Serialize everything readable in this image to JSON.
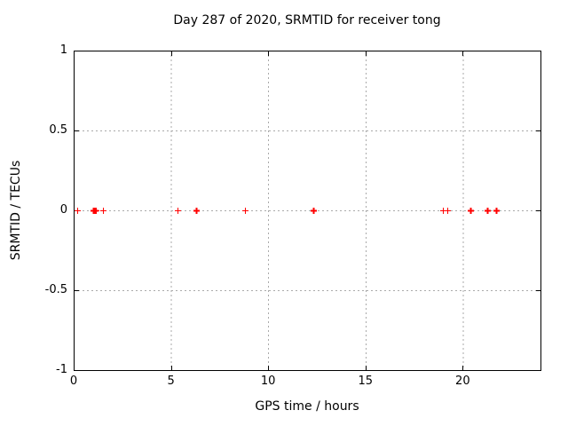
{
  "title": "Day 287 of 2020, SRMTID for receiver tong",
  "chart_data": {
    "type": "scatter",
    "title": "Day 287 of 2020, SRMTID for receiver tong",
    "xlabel": "GPS time / hours",
    "ylabel": "SRMTID / TECUs",
    "xlim": [
      0,
      24
    ],
    "ylim": [
      -1,
      1
    ],
    "xticks": [
      0,
      5,
      10,
      15,
      20
    ],
    "yticks": [
      1,
      0.5,
      0,
      -0.5,
      -1
    ],
    "grid": true,
    "grid_xticks": [
      5,
      10,
      15,
      20
    ],
    "grid_yticks": [
      0.5,
      0,
      -0.5
    ],
    "legend_position": "none",
    "marker": "plus",
    "marker_color": "#ff0000",
    "border_color": "#000000",
    "grid_color": "#aaaaaa",
    "background_color": "#ffffff",
    "series": [
      {
        "name": "SRMTID",
        "points": [
          {
            "x": 0.2,
            "y": 0,
            "bold": false
          },
          {
            "x": 1.0,
            "y": 0,
            "bold": true
          },
          {
            "x": 1.05,
            "y": 0,
            "bold": true
          },
          {
            "x": 1.1,
            "y": 0,
            "bold": true
          },
          {
            "x": 1.15,
            "y": 0,
            "bold": false
          },
          {
            "x": 1.5,
            "y": 0,
            "bold": false
          },
          {
            "x": 5.35,
            "y": 0,
            "bold": false
          },
          {
            "x": 6.3,
            "y": 0,
            "bold": true
          },
          {
            "x": 8.8,
            "y": 0,
            "bold": false
          },
          {
            "x": 12.3,
            "y": 0,
            "bold": true
          },
          {
            "x": 19.0,
            "y": 0,
            "bold": false
          },
          {
            "x": 19.2,
            "y": 0,
            "bold": false
          },
          {
            "x": 20.4,
            "y": 0,
            "bold": true
          },
          {
            "x": 21.25,
            "y": 0,
            "bold": true
          },
          {
            "x": 21.7,
            "y": 0,
            "bold": true
          }
        ]
      }
    ]
  }
}
